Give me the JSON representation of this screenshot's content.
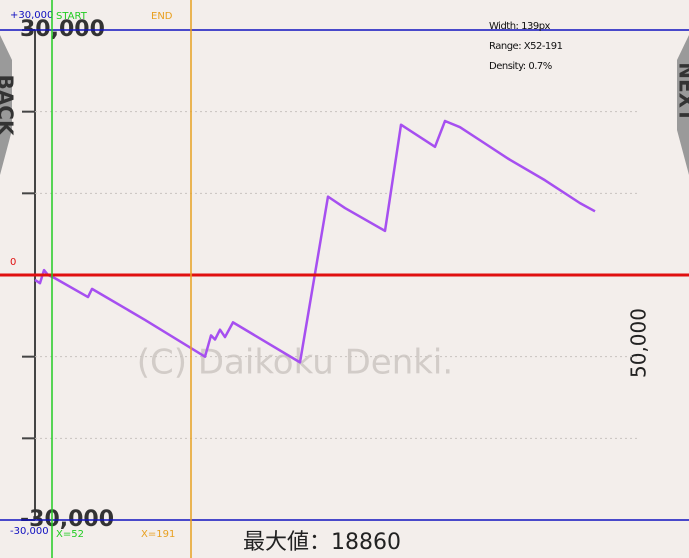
{
  "chart_data": {
    "type": "line",
    "color": "#a64ff0",
    "x": [
      35,
      40,
      44,
      48,
      55,
      88,
      92,
      145,
      205,
      211,
      215,
      220,
      225,
      233,
      300,
      328,
      345,
      385,
      401,
      435,
      445,
      460,
      480,
      510,
      545,
      580,
      595
    ],
    "values": [
      -600,
      -1000,
      600,
      0,
      -400,
      -2700,
      -1700,
      -5500,
      -10000,
      -7400,
      -7900,
      -6700,
      -7600,
      -5800,
      -10700,
      9600,
      8200,
      5400,
      18400,
      15700,
      18860,
      18100,
      16500,
      14100,
      11600,
      8800,
      7800
    ],
    "xlim": [
      0,
      689
    ],
    "ylim": [
      -30000,
      30000
    ],
    "yticks": [
      30000,
      20000,
      10000,
      0,
      -10000,
      -20000,
      -30000
    ],
    "grid": true,
    "image_axis_labels": [
      {
        "value": 30000,
        "label": "30,000"
      },
      {
        "value": -30000,
        "label": "-30,000"
      }
    ],
    "reference_lines": [
      {
        "value": 30000,
        "label": "+30,000",
        "color": "#1010c0"
      },
      {
        "value": 0,
        "label": "0",
        "color": "#e01010"
      },
      {
        "value": -30000,
        "label": "-30,000",
        "color": "#1010c0"
      }
    ],
    "markers": [
      {
        "x": 52,
        "label": "START",
        "position_label": "X=52",
        "color": "#22cc22"
      },
      {
        "x": 191,
        "label": "END",
        "position_label": "X=191",
        "color": "#e8a020"
      }
    ],
    "info": [
      "Width: 139px",
      "Range: X52-191",
      "Density: 0.7%"
    ],
    "scale_label": "50,000",
    "watermark": "(C) Daikoku Denki.",
    "max_label": "最大値：18860",
    "back": "BACK",
    "next": "NEXT"
  }
}
